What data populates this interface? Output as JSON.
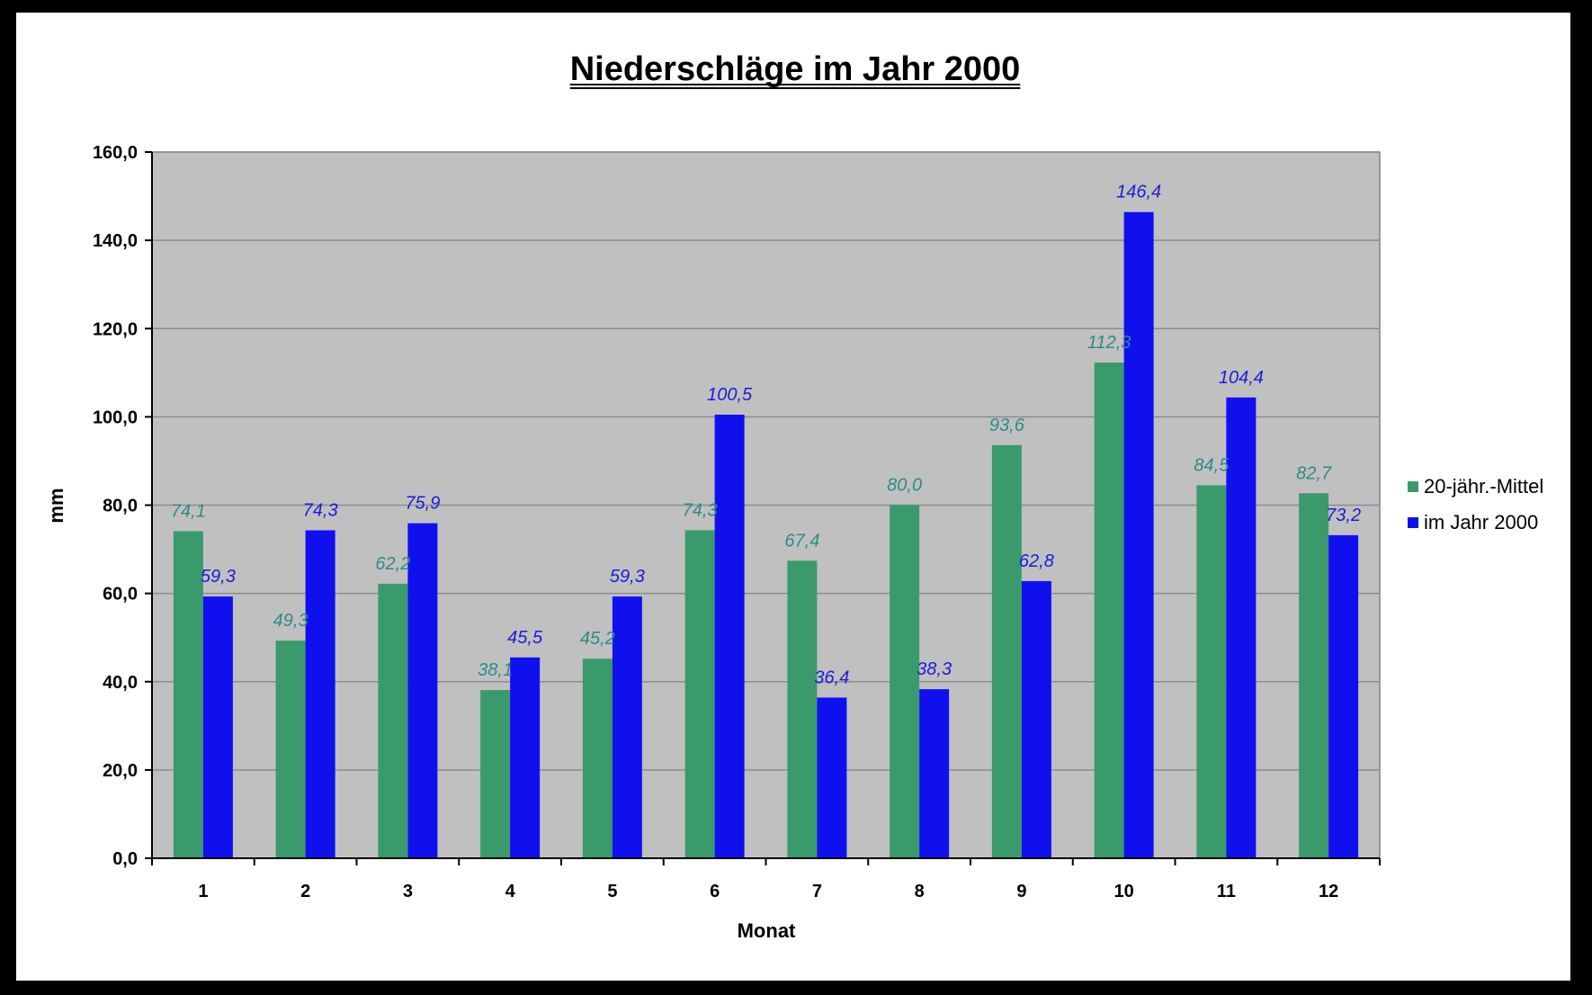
{
  "chart_data": {
    "type": "bar",
    "title": "Niederschläge im Jahr 2000",
    "xlabel": "Monat",
    "ylabel": "mm",
    "categories": [
      "1",
      "2",
      "3",
      "4",
      "5",
      "6",
      "7",
      "8",
      "9",
      "10",
      "11",
      "12"
    ],
    "series": [
      {
        "name": "20-jähr.-Mittel",
        "color": "#3a9a6c",
        "label_color": "#2e8a86",
        "values": [
          74.1,
          49.3,
          62.2,
          38.1,
          45.2,
          74.3,
          67.4,
          80.0,
          93.6,
          112.3,
          84.5,
          82.7
        ],
        "labels": [
          "74,1",
          "49,3",
          "62,2",
          "38,1",
          "45,2",
          "74,3",
          "67,4",
          "80,0",
          "93,6",
          "112,3",
          "84,5",
          "82,7"
        ]
      },
      {
        "name": "im Jahr 2000",
        "color": "#1010ee",
        "label_color": "#1c1cd8",
        "values": [
          59.3,
          74.3,
          75.9,
          45.5,
          59.3,
          100.5,
          36.4,
          38.3,
          62.8,
          146.4,
          104.4,
          73.2
        ],
        "labels": [
          "59,3",
          "74,3",
          "75,9",
          "45,5",
          "59,3",
          "100,5",
          "36,4",
          "38,3",
          "62,8",
          "146,4",
          "104,4",
          "73,2"
        ]
      }
    ],
    "ylim": [
      0,
      160
    ],
    "yticks": [
      "0,0",
      "20,0",
      "40,0",
      "60,0",
      "80,0",
      "100,0",
      "120,0",
      "140,0",
      "160,0"
    ],
    "ytick_values": [
      0,
      20,
      40,
      60,
      80,
      100,
      120,
      140,
      160
    ],
    "grid": true,
    "legend_position": "right",
    "plot_background": "#c0c0c0"
  }
}
